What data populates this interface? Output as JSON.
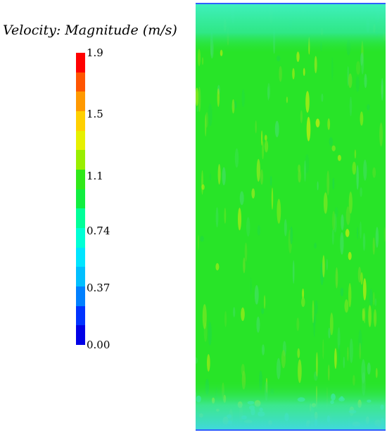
{
  "legend": {
    "title": "Velocity: Magnitude (m/s)",
    "min": 0.0,
    "max": 1.9,
    "ticks": [
      {
        "value": 1.9,
        "label": "1.9"
      },
      {
        "value": 1.5,
        "label": "1.5"
      },
      {
        "value": 1.1,
        "label": "1.1"
      },
      {
        "value": 0.74,
        "label": "0.74"
      },
      {
        "value": 0.37,
        "label": "0.37"
      },
      {
        "value": 0.0,
        "label": "0.00"
      }
    ],
    "colormap": [
      "#0000e6",
      "#0033ff",
      "#0080ff",
      "#00bfff",
      "#00e5ff",
      "#00ffd5",
      "#00ff99",
      "#10ee40",
      "#30e818",
      "#99ee00",
      "#e6f000",
      "#ffd000",
      "#ff9900",
      "#ff5500",
      "#ff0000"
    ]
  },
  "field": {
    "background": "#28e428",
    "rim_color": "#3cf0b0"
  }
}
